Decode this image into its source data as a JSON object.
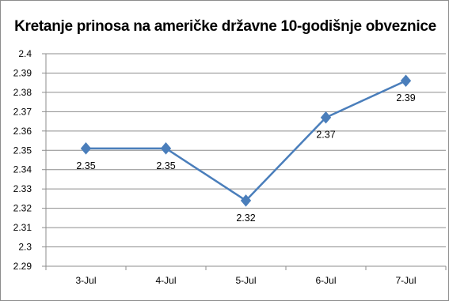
{
  "chart_data": {
    "type": "line",
    "title": "Kretanje prinosa na američke državne 10-godišnje obveznice",
    "categories": [
      "3-Jul",
      "4-Jul",
      "5-Jul",
      "6-Jul",
      "7-Jul"
    ],
    "series": [
      {
        "values": [
          2.351,
          2.351,
          2.324,
          2.367,
          2.386
        ],
        "data_labels": [
          "2.35",
          "2.35",
          "2.32",
          "2.37",
          "2.39"
        ]
      }
    ],
    "y_ticks": [
      "2.29",
      "2.3",
      "2.31",
      "2.32",
      "2.33",
      "2.34",
      "2.35",
      "2.36",
      "2.37",
      "2.38",
      "2.39",
      "2.4"
    ],
    "ylim": [
      2.29,
      2.4
    ],
    "xlabel": "",
    "ylabel": "",
    "grid": "horizontal",
    "legend": "none",
    "colors": {
      "series": "#4a7ebb",
      "grid": "#8c8c8c"
    }
  }
}
